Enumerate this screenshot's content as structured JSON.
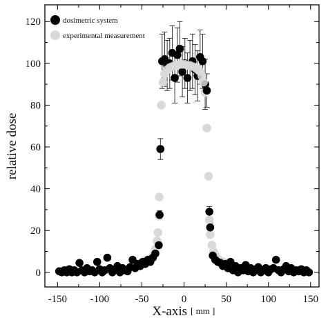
{
  "chart_data": {
    "type": "scatter",
    "xlabel": "X-axis",
    "xunit": "[ mm ]",
    "ylabel": "relative dose",
    "xlim": [
      -165,
      160
    ],
    "ylim": [
      -7,
      128
    ],
    "xticks": [
      -150,
      -100,
      -50,
      0,
      50,
      100,
      150
    ],
    "yticks": [
      0,
      20,
      40,
      60,
      80,
      100,
      120
    ],
    "grid": false,
    "legend_position": "top-left",
    "colors": {
      "dosimetric": "#000000",
      "experimental": "#d9d9d9"
    },
    "series": [
      {
        "name": "dosimetric system",
        "marker": "filled-circle",
        "color": "#000000",
        "points": [
          {
            "x": -148,
            "y": 0.5
          },
          {
            "x": -145,
            "y": 0
          },
          {
            "x": -142,
            "y": 1
          },
          {
            "x": -139,
            "y": 0
          },
          {
            "x": -136,
            "y": 1.5
          },
          {
            "x": -133,
            "y": 0
          },
          {
            "x": -130,
            "y": 1
          },
          {
            "x": -127,
            "y": 0
          },
          {
            "x": -124,
            "y": 4.5
          },
          {
            "x": -121,
            "y": 1
          },
          {
            "x": -118,
            "y": 0
          },
          {
            "x": -115,
            "y": 2
          },
          {
            "x": -112,
            "y": 0.5
          },
          {
            "x": -109,
            "y": 1
          },
          {
            "x": -106,
            "y": 0
          },
          {
            "x": -103,
            "y": 5
          },
          {
            "x": -100,
            "y": 1.5
          },
          {
            "x": -97,
            "y": 0
          },
          {
            "x": -94,
            "y": 1
          },
          {
            "x": -91,
            "y": 7
          },
          {
            "x": -88,
            "y": 2
          },
          {
            "x": -85,
            "y": 0
          },
          {
            "x": -82,
            "y": 1.5
          },
          {
            "x": -79,
            "y": 3
          },
          {
            "x": -76,
            "y": 0
          },
          {
            "x": -73,
            "y": 2
          },
          {
            "x": -70,
            "y": 1
          },
          {
            "x": -67,
            "y": 0.5
          },
          {
            "x": -64,
            "y": 2.5
          },
          {
            "x": -61,
            "y": 6
          },
          {
            "x": -58,
            "y": 2
          },
          {
            "x": -55,
            "y": 4
          },
          {
            "x": -52,
            "y": 3
          },
          {
            "x": -49,
            "y": 5
          },
          {
            "x": -46,
            "y": 4
          },
          {
            "x": -43,
            "y": 6
          },
          {
            "x": -40,
            "y": 5
          },
          {
            "x": -37,
            "y": 7
          },
          {
            "x": -34,
            "y": 9
          },
          {
            "x": -30,
            "y": 13,
            "err": 1.5
          },
          {
            "x": -29,
            "y": 27.5,
            "err": 2
          },
          {
            "x": -28,
            "y": 59,
            "err": 5
          },
          {
            "x": -26,
            "y": 101,
            "err": 13
          },
          {
            "x": -23,
            "y": 102,
            "err": 13
          },
          {
            "x": -20,
            "y": 99,
            "err": 12
          },
          {
            "x": -17,
            "y": 100,
            "err": 12
          },
          {
            "x": -14,
            "y": 105,
            "err": 13
          },
          {
            "x": -11,
            "y": 93,
            "err": 12
          },
          {
            "x": -8,
            "y": 104,
            "err": 13
          },
          {
            "x": -5,
            "y": 107,
            "err": 13
          },
          {
            "x": -2,
            "y": 96,
            "err": 12
          },
          {
            "x": 1,
            "y": 100,
            "err": 12
          },
          {
            "x": 4,
            "y": 93,
            "err": 12
          },
          {
            "x": 7,
            "y": 99,
            "err": 12
          },
          {
            "x": 10,
            "y": 101,
            "err": 13
          },
          {
            "x": 13,
            "y": 97,
            "err": 12
          },
          {
            "x": 16,
            "y": 94,
            "err": 12
          },
          {
            "x": 19,
            "y": 103,
            "err": 13
          },
          {
            "x": 22,
            "y": 101,
            "err": 13
          },
          {
            "x": 25,
            "y": 90,
            "err": 12
          },
          {
            "x": 27,
            "y": 87,
            "err": 8
          },
          {
            "x": 30,
            "y": 29,
            "err": 2.5
          },
          {
            "x": 31,
            "y": 21.5,
            "err": 2
          },
          {
            "x": 34,
            "y": 8
          },
          {
            "x": 37,
            "y": 6
          },
          {
            "x": 40,
            "y": 5
          },
          {
            "x": 43,
            "y": 4.5
          },
          {
            "x": 46,
            "y": 3
          },
          {
            "x": 49,
            "y": 4
          },
          {
            "x": 52,
            "y": 2
          },
          {
            "x": 55,
            "y": 5
          },
          {
            "x": 58,
            "y": 1
          },
          {
            "x": 61,
            "y": 3
          },
          {
            "x": 64,
            "y": 0
          },
          {
            "x": 67,
            "y": 2
          },
          {
            "x": 70,
            "y": 1
          },
          {
            "x": 73,
            "y": 3.5
          },
          {
            "x": 76,
            "y": 0.5
          },
          {
            "x": 79,
            "y": 2
          },
          {
            "x": 82,
            "y": 0
          },
          {
            "x": 85,
            "y": 1.5
          },
          {
            "x": 88,
            "y": 2.5
          },
          {
            "x": 91,
            "y": 0
          },
          {
            "x": 94,
            "y": 1
          },
          {
            "x": 97,
            "y": 2
          },
          {
            "x": 100,
            "y": 0
          },
          {
            "x": 103,
            "y": 1.5
          },
          {
            "x": 106,
            "y": 2
          },
          {
            "x": 109,
            "y": 6
          },
          {
            "x": 112,
            "y": 1
          },
          {
            "x": 115,
            "y": 0
          },
          {
            "x": 118,
            "y": 1.5
          },
          {
            "x": 121,
            "y": 3
          },
          {
            "x": 124,
            "y": 0.5
          },
          {
            "x": 127,
            "y": 2
          },
          {
            "x": 130,
            "y": 0
          },
          {
            "x": 133,
            "y": 1
          },
          {
            "x": 136,
            "y": 0.5
          },
          {
            "x": 139,
            "y": 1.5
          },
          {
            "x": 142,
            "y": 0
          },
          {
            "x": 145,
            "y": 1
          },
          {
            "x": 148,
            "y": 0
          }
        ]
      },
      {
        "name": "experimental measurement",
        "marker": "filled-circle",
        "color": "#d9d9d9",
        "points": [
          {
            "x": -60,
            "y": 3
          },
          {
            "x": -57,
            "y": 3.5
          },
          {
            "x": -54,
            "y": 4
          },
          {
            "x": -51,
            "y": 4.5
          },
          {
            "x": -48,
            "y": 5
          },
          {
            "x": -45,
            "y": 5.5
          },
          {
            "x": -42,
            "y": 6
          },
          {
            "x": -39,
            "y": 7
          },
          {
            "x": -36,
            "y": 8.5
          },
          {
            "x": -34,
            "y": 11
          },
          {
            "x": -32,
            "y": 15
          },
          {
            "x": -31,
            "y": 19
          },
          {
            "x": -30,
            "y": 27
          },
          {
            "x": -29.5,
            "y": 36
          },
          {
            "x": -28.5,
            "y": 59
          },
          {
            "x": -27,
            "y": 80
          },
          {
            "x": -25,
            "y": 91
          },
          {
            "x": -23,
            "y": 95
          },
          {
            "x": -20,
            "y": 97
          },
          {
            "x": -17,
            "y": 98
          },
          {
            "x": -14,
            "y": 98.5
          },
          {
            "x": -11,
            "y": 99
          },
          {
            "x": -8,
            "y": 99
          },
          {
            "x": -5,
            "y": 99.5
          },
          {
            "x": -2,
            "y": 99.5
          },
          {
            "x": 1,
            "y": 99.5
          },
          {
            "x": 4,
            "y": 99
          },
          {
            "x": 7,
            "y": 99
          },
          {
            "x": 10,
            "y": 98.5
          },
          {
            "x": 13,
            "y": 98
          },
          {
            "x": 16,
            "y": 97
          },
          {
            "x": 19,
            "y": 96
          },
          {
            "x": 21,
            "y": 94
          },
          {
            "x": 23,
            "y": 91
          },
          {
            "x": 25,
            "y": 86
          },
          {
            "x": 27,
            "y": 69
          },
          {
            "x": 29,
            "y": 46
          },
          {
            "x": 30,
            "y": 25
          },
          {
            "x": 31,
            "y": 18
          },
          {
            "x": 33,
            "y": 13
          },
          {
            "x": 35,
            "y": 10
          },
          {
            "x": 37,
            "y": 8
          },
          {
            "x": 40,
            "y": 6.5
          },
          {
            "x": 43,
            "y": 5.5
          },
          {
            "x": 46,
            "y": 5
          },
          {
            "x": 49,
            "y": 4.5
          },
          {
            "x": 52,
            "y": 4
          },
          {
            "x": 55,
            "y": 3.5
          },
          {
            "x": 58,
            "y": 3
          },
          {
            "x": 61,
            "y": 2.5
          }
        ]
      }
    ]
  }
}
